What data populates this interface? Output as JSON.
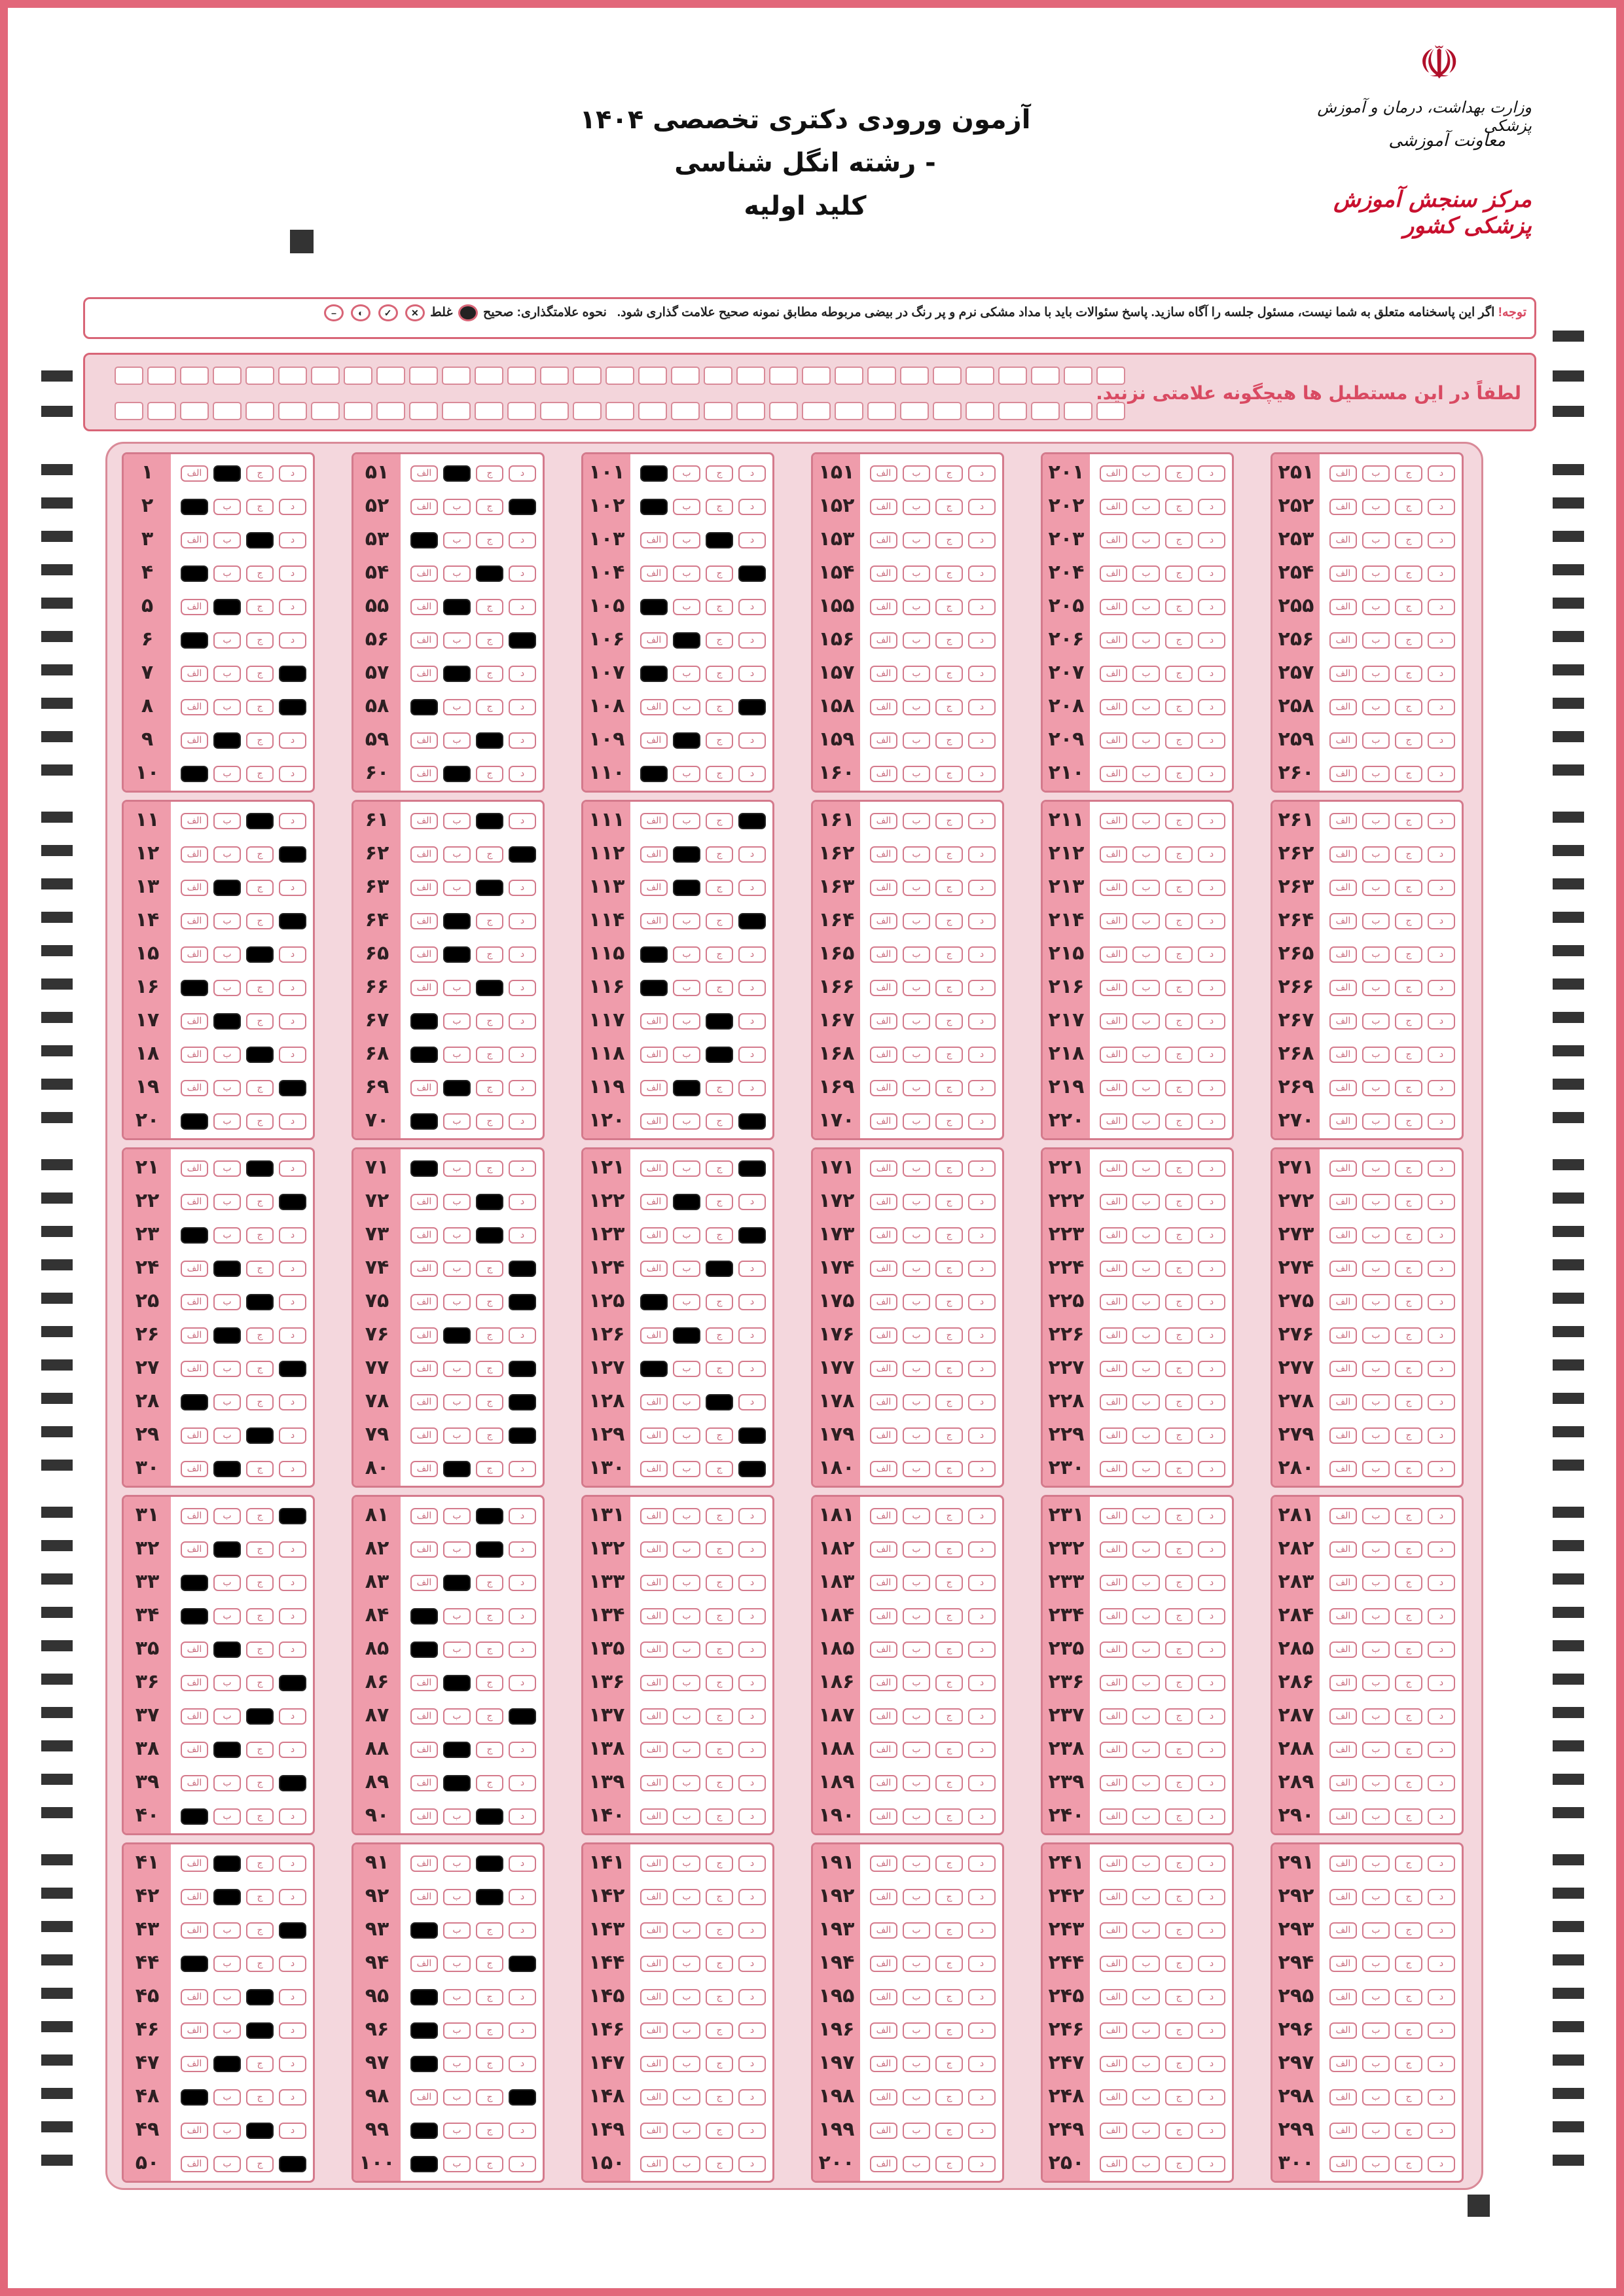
{
  "header": {
    "title": "آزمون ورودی دکتری تخصصی ۱۴۰۴",
    "field": "- رشته انگل شناسی",
    "subtitle": "کلید اولیه"
  },
  "logo": {
    "ministry": "وزارت بهداشت، درمان و آموزش پزشکی",
    "deputy": "معاونت آموزشی",
    "center": "مرکز سنجش آموزش پزشکی کشور",
    "emblem_icon": "iran-emblem-icon"
  },
  "notice": {
    "attention": "توجه!",
    "text": " اگر این پاسخنامه متعلق به شما نیست، مسئول جلسه را آگاه سازید. پاسخ سئوالات باید با مداد مشکی نرم و پر رنگ در بیضی مربوطه مطابق نمونه صحیح علامت گذاری شود.",
    "marking_label": "نحوه علامتگذاری: صحیح",
    "wrong_label": "غلط"
  },
  "boxes": {
    "warning": "لطفاً در این مستطیل ها هیچگونه علامتی نزنید.",
    "per_row": 31,
    "rows": 2
  },
  "sheet": {
    "question_count": 300,
    "digits": "۰۱۲۳۴۵۶۷۸۹",
    "options": [
      "الف",
      "ب",
      "ج",
      "د"
    ],
    "answers": [
      2,
      1,
      3,
      1,
      2,
      1,
      4,
      4,
      2,
      1,
      3,
      4,
      2,
      4,
      3,
      1,
      2,
      3,
      4,
      1,
      3,
      4,
      1,
      2,
      3,
      2,
      4,
      1,
      3,
      2,
      4,
      2,
      1,
      1,
      2,
      4,
      3,
      2,
      4,
      1,
      2,
      2,
      4,
      1,
      3,
      3,
      2,
      1,
      3,
      4,
      2,
      4,
      1,
      3,
      2,
      4,
      2,
      1,
      3,
      2,
      3,
      4,
      3,
      2,
      2,
      3,
      1,
      1,
      2,
      1,
      1,
      3,
      3,
      4,
      4,
      2,
      4,
      4,
      4,
      2,
      3,
      3,
      2,
      1,
      1,
      2,
      4,
      2,
      2,
      3,
      3,
      3,
      1,
      4,
      1,
      1,
      1,
      4,
      1,
      1,
      1,
      1,
      3,
      4,
      1,
      2,
      1,
      4,
      2,
      1,
      4,
      2,
      2,
      4,
      1,
      1,
      3,
      3,
      2,
      4,
      4,
      2,
      4,
      3,
      1,
      2,
      1,
      3,
      4,
      4
    ]
  },
  "colors": {
    "frame": "#e2677a",
    "accent": "#d94a62",
    "number_cell": "#ef9cab",
    "panel": "#f4d7dd",
    "filled": "#000000"
  }
}
